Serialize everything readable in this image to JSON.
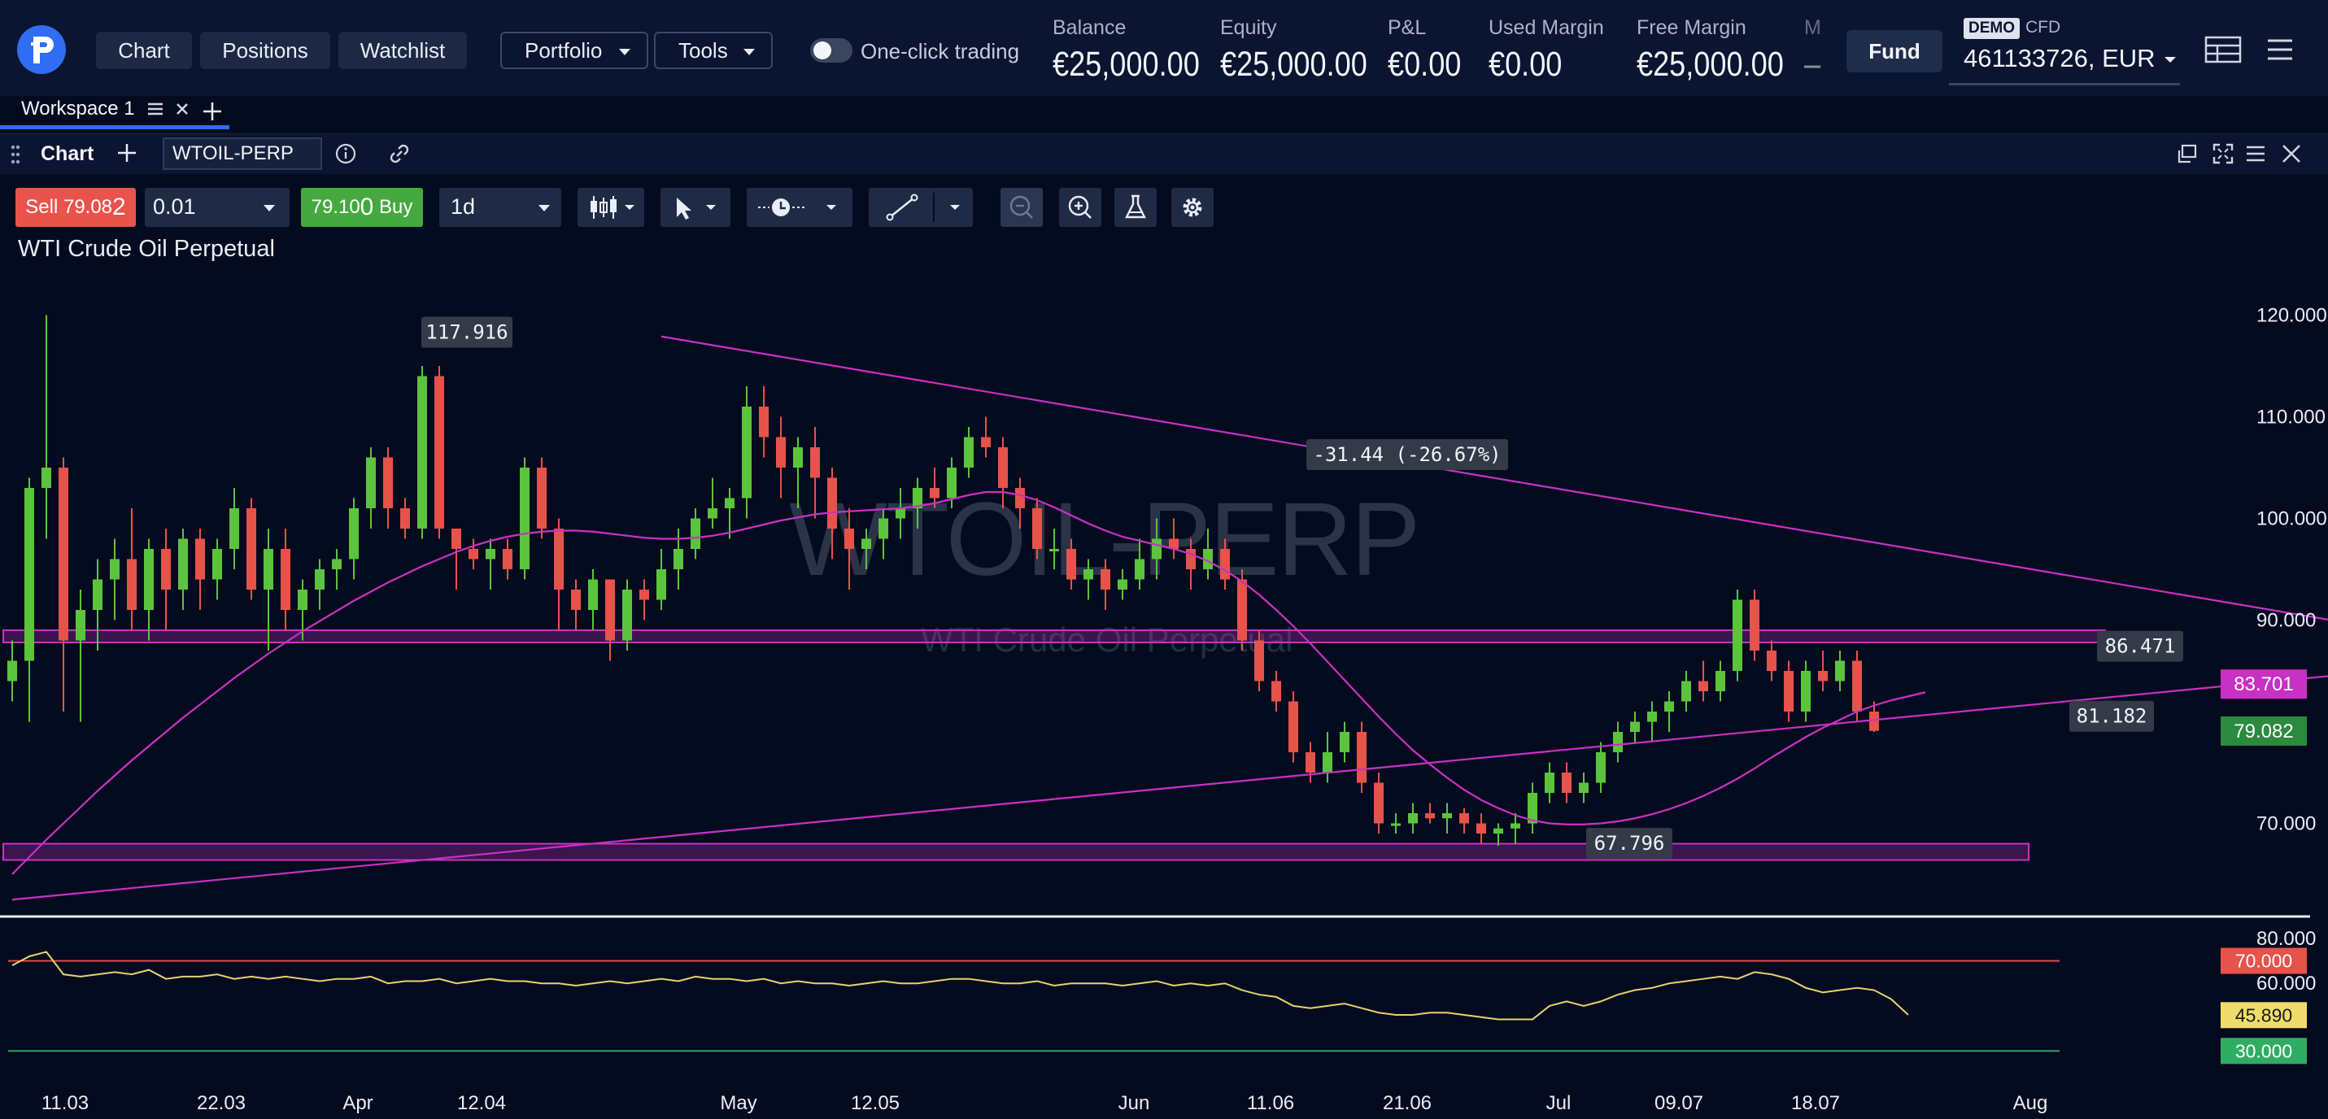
{
  "app": {
    "logo": "plus500-p-logo"
  },
  "nav": {
    "chart": "Chart",
    "positions": "Positions",
    "watchlist": "Watchlist",
    "portfolio": "Portfolio",
    "tools": "Tools"
  },
  "one_click": {
    "label": "One-click trading",
    "enabled": false
  },
  "account_stats": [
    {
      "label": "Balance",
      "value": "€25,000.00"
    },
    {
      "label": "Equity",
      "value": "€25,000.00"
    },
    {
      "label": "P&L",
      "value": "€0.00"
    },
    {
      "label": "Used Margin",
      "value": "€0.00"
    },
    {
      "label": "Free Margin",
      "value": "€25,000.00"
    },
    {
      "label": "M",
      "value": "–"
    }
  ],
  "fund_label": "Fund",
  "account": {
    "mode_badge": "DEMO",
    "type": "CFD",
    "id": "461133726, EUR"
  },
  "workspace": {
    "tab": "Workspace 1",
    "active_color": "#2f6df2"
  },
  "panel": {
    "title": "Chart",
    "symbol": "WTOIL-PERP"
  },
  "trade": {
    "sell_prefix": "Sell ",
    "sell_main": "79.08",
    "sell_pip": "2",
    "quantity": "0.01",
    "buy_main": "79.10",
    "buy_pip": "0",
    "buy_suffix": " Buy",
    "timeframe": "1d"
  },
  "chart_data": {
    "type": "candlestick",
    "title": "WTI Crude Oil Perpetual",
    "watermark": "WTOIL-PERP",
    "watermark_sub": "WTI Crude Oil Perpetual",
    "x_tick_labels": [
      "11.03",
      "22.03",
      "Apr",
      "12.04",
      "May",
      "12.05",
      "Jun",
      "11.06",
      "21.06",
      "Jul",
      "09.07",
      "18.07",
      "Aug"
    ],
    "y_tick_labels": [
      "120.000",
      "110.000",
      "100.000",
      "90.000",
      "70.000"
    ],
    "ylim": [
      63,
      127
    ],
    "price_labels": [
      {
        "value": 83.701,
        "text": "83.701",
        "color": "#c931c4"
      },
      {
        "value": 79.082,
        "text": "79.082",
        "color": "#2b8a3e"
      }
    ],
    "annotations": [
      {
        "text": "117.916",
        "y": 117.916
      },
      {
        "text": "-31.44 (-26.67%)"
      },
      {
        "text": "86.471",
        "y": 86.471
      },
      {
        "text": "81.182",
        "y": 81.182
      },
      {
        "text": "67.796",
        "y": 67.796
      }
    ],
    "zones": [
      {
        "y_low": 87.8,
        "y_high": 89.0
      },
      {
        "y_low": 66.4,
        "y_high": 68.0
      }
    ],
    "candle_colors": {
      "up": "#5bc43c",
      "down": "#e5534b"
    },
    "candles": [
      [
        84,
        88,
        82,
        86
      ],
      [
        86,
        104,
        80,
        103
      ],
      [
        103,
        120,
        98,
        105
      ],
      [
        105,
        106,
        81,
        88
      ],
      [
        88,
        93,
        80,
        91
      ],
      [
        91,
        96,
        87,
        94
      ],
      [
        94,
        98,
        90,
        96
      ],
      [
        96,
        101,
        89,
        91
      ],
      [
        91,
        98,
        88,
        97
      ],
      [
        97,
        99,
        89,
        93
      ],
      [
        93,
        99,
        91,
        98
      ],
      [
        98,
        99,
        91,
        94
      ],
      [
        94,
        98,
        92,
        97
      ],
      [
        97,
        103,
        95,
        101
      ],
      [
        101,
        102,
        92,
        93
      ],
      [
        93,
        99,
        87,
        97
      ],
      [
        97,
        99,
        89,
        91
      ],
      [
        91,
        94,
        88,
        93
      ],
      [
        93,
        96,
        91,
        95
      ],
      [
        95,
        97,
        93,
        96
      ],
      [
        96,
        102,
        94,
        101
      ],
      [
        101,
        107,
        99,
        106
      ],
      [
        106,
        107,
        99,
        101
      ],
      [
        101,
        102,
        98,
        99
      ],
      [
        99,
        115,
        98,
        114
      ],
      [
        114,
        115,
        98,
        99
      ],
      [
        99,
        99,
        93,
        97
      ],
      [
        97,
        98,
        95,
        96
      ],
      [
        96,
        98,
        93,
        97
      ],
      [
        97,
        98,
        94,
        95
      ],
      [
        95,
        106,
        94,
        105
      ],
      [
        105,
        106,
        98,
        99
      ],
      [
        99,
        100,
        89,
        93
      ],
      [
        93,
        94,
        89,
        91
      ],
      [
        91,
        95,
        89,
        94
      ],
      [
        94,
        94,
        86,
        88
      ],
      [
        88,
        94,
        87,
        93
      ],
      [
        93,
        94,
        90,
        92
      ],
      [
        92,
        97,
        91,
        95
      ],
      [
        95,
        99,
        93,
        97
      ],
      [
        97,
        101,
        96,
        100
      ],
      [
        100,
        104,
        99,
        101
      ],
      [
        101,
        103,
        98,
        102
      ],
      [
        102,
        113,
        100,
        111
      ],
      [
        111,
        113,
        106,
        108
      ],
      [
        108,
        110,
        102,
        105
      ],
      [
        105,
        108,
        101,
        107
      ],
      [
        107,
        109,
        100,
        104
      ],
      [
        104,
        105,
        96,
        99
      ],
      [
        99,
        101,
        93,
        97
      ],
      [
        97,
        99,
        95,
        98
      ],
      [
        98,
        101,
        96,
        100
      ],
      [
        100,
        103,
        98,
        101
      ],
      [
        101,
        104,
        99,
        103
      ],
      [
        103,
        105,
        101,
        102
      ],
      [
        102,
        106,
        101,
        105
      ],
      [
        105,
        109,
        104,
        108
      ],
      [
        108,
        110,
        106,
        107
      ],
      [
        107,
        108,
        101,
        103
      ],
      [
        103,
        104,
        99,
        101
      ],
      [
        101,
        102,
        96,
        97
      ],
      [
        97,
        99,
        95,
        97
      ],
      [
        97,
        98,
        93,
        94
      ],
      [
        94,
        96,
        92,
        95
      ],
      [
        95,
        96,
        91,
        93
      ],
      [
        93,
        95,
        92,
        94
      ],
      [
        94,
        98,
        93,
        96
      ],
      [
        96,
        100,
        94,
        98
      ],
      [
        98,
        100,
        96,
        97
      ],
      [
        97,
        98,
        93,
        95
      ],
      [
        95,
        99,
        94,
        97
      ],
      [
        97,
        98,
        93,
        94
      ],
      [
        94,
        95,
        87,
        88
      ],
      [
        88,
        89,
        83,
        84
      ],
      [
        84,
        85,
        81,
        82
      ],
      [
        82,
        83,
        76,
        77
      ],
      [
        77,
        78,
        74,
        75
      ],
      [
        75,
        79,
        74,
        77
      ],
      [
        77,
        80,
        76,
        79
      ],
      [
        79,
        80,
        73,
        74
      ],
      [
        74,
        75,
        69,
        70
      ],
      [
        70,
        71,
        69,
        70
      ],
      [
        70,
        72,
        69,
        71
      ],
      [
        71,
        72,
        70,
        70.5
      ],
      [
        70.5,
        72,
        69,
        71
      ],
      [
        71,
        71.5,
        69,
        70
      ],
      [
        70,
        71,
        68,
        69
      ],
      [
        69,
        70,
        67.8,
        69.5
      ],
      [
        69.5,
        71,
        68,
        70
      ],
      [
        70,
        74,
        69,
        73
      ],
      [
        73,
        76,
        72,
        75
      ],
      [
        75,
        76,
        72,
        73
      ],
      [
        73,
        75,
        72,
        74
      ],
      [
        74,
        78,
        73,
        77
      ],
      [
        77,
        80,
        76,
        79
      ],
      [
        79,
        81,
        78,
        80
      ],
      [
        80,
        82,
        78,
        81
      ],
      [
        81,
        83,
        79,
        82
      ],
      [
        82,
        85,
        81,
        84
      ],
      [
        84,
        86,
        82,
        83
      ],
      [
        83,
        86,
        82,
        85
      ],
      [
        85,
        93,
        84,
        92
      ],
      [
        92,
        93,
        86,
        87
      ],
      [
        87,
        88,
        84,
        85
      ],
      [
        85,
        86,
        80,
        81
      ],
      [
        81,
        86,
        80,
        85
      ],
      [
        85,
        87,
        83,
        84
      ],
      [
        84,
        87,
        83,
        86
      ],
      [
        86,
        87,
        80,
        81
      ],
      [
        81,
        82,
        79,
        79.1
      ]
    ],
    "ma_line": [
      65,
      66.7,
      68.4,
      70,
      71.6,
      73.2,
      74.7,
      76.2,
      77.6,
      79,
      80.4,
      81.7,
      83,
      84.3,
      85.5,
      86.7,
      87.8,
      88.9,
      89.9,
      90.9,
      91.9,
      92.8,
      93.7,
      94.5,
      95.3,
      96,
      96.7,
      97.3,
      97.8,
      98.2,
      98.5,
      98.7,
      98.8,
      98.8,
      98.7,
      98.5,
      98.3,
      98.1,
      98,
      98,
      98.1,
      98.3,
      98.6,
      99,
      99.4,
      99.8,
      100.1,
      100.4,
      100.6,
      100.7,
      100.8,
      100.9,
      101,
      101.2,
      101.5,
      101.9,
      102.3,
      102.6,
      102.6,
      102.3,
      101.8,
      101.1,
      100.3,
      99.5,
      98.8,
      98.2,
      97.8,
      97.4,
      97,
      96.5,
      95.8,
      94.9,
      93.8,
      92.5,
      91,
      89.4,
      87.7,
      85.9,
      84.1,
      82.3,
      80.5,
      78.8,
      77.2,
      75.8,
      74.5,
      73.3,
      72.3,
      71.5,
      70.8,
      70.3,
      70,
      69.9,
      69.9,
      70,
      70.2,
      70.5,
      70.9,
      71.4,
      72,
      72.7,
      73.5,
      74.4,
      75.4,
      76.5,
      77.5,
      78.5,
      79.4,
      80.2,
      81,
      81.6,
      82.1,
      82.5,
      82.9
    ],
    "trendlines": [
      {
        "name": "upper",
        "from": [
          38,
          117.9
        ],
        "to": [
          148,
          86.5
        ]
      },
      {
        "name": "lower",
        "from": [
          0,
          62.5
        ],
        "to": [
          148,
          86.5
        ]
      }
    ],
    "rsi": {
      "y_tick_labels": [
        "80.000",
        "60.000"
      ],
      "ylim": [
        20,
        85
      ],
      "levels": [
        {
          "value": 70,
          "text": "70.000",
          "color": "#e5534b"
        },
        {
          "value": 30,
          "text": "30.000",
          "color": "#2fae63"
        }
      ],
      "current": {
        "value": 45.89,
        "text": "45.890",
        "color": "#f0dc6a"
      },
      "values": [
        68,
        72,
        74,
        64,
        63,
        64,
        65,
        64,
        66,
        62,
        63,
        63,
        64,
        62,
        63,
        62,
        63,
        62,
        61,
        62,
        62,
        63,
        60,
        61,
        61,
        62,
        60,
        61,
        62,
        61,
        61,
        60,
        60,
        59,
        60,
        61,
        60,
        61,
        62,
        61,
        63,
        62,
        62,
        61,
        62,
        60,
        61,
        60,
        60,
        59,
        60,
        61,
        60,
        60,
        61,
        62,
        62,
        61,
        60,
        60,
        61,
        59,
        60,
        60,
        60,
        59,
        60,
        61,
        59,
        60,
        59,
        60,
        57,
        55,
        54,
        50,
        49,
        50,
        51,
        49,
        47,
        46,
        46,
        47,
        47,
        46,
        45,
        44,
        44,
        44,
        50,
        52,
        50,
        52,
        55,
        57,
        58,
        60,
        61,
        62,
        63,
        62,
        65,
        64,
        62,
        58,
        56,
        57,
        58,
        57,
        53,
        46
      ]
    }
  }
}
